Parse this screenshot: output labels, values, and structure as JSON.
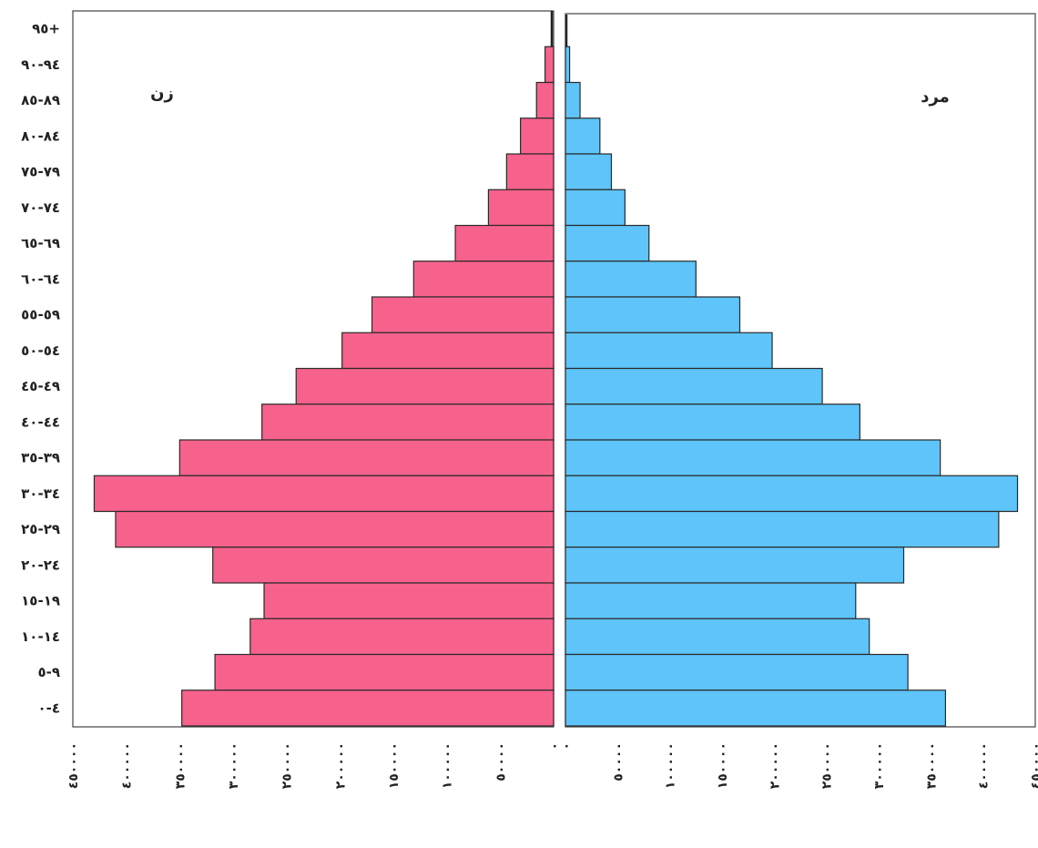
{
  "chart_data": {
    "type": "bar",
    "orientation": "horizontal",
    "categories": [
      "٩٥+",
      "٩٤-٩٠",
      "٨٩-٨٥",
      "٨٤-٨٠",
      "٧٩-٧٥",
      "٧٤-٧٠",
      "٦٩-٦٥",
      "٦٤-٦٠",
      "٥٩-٥٥",
      "٥٤-٥٠",
      "٤٩-٤٥",
      "٤٤-٤٠",
      "٣٩-٣٥",
      "٣٤-٣٠",
      "٢٩-٢٥",
      "٢٤-٢٠",
      "١٩-١٥",
      "١٤-١٠",
      "٩-٥",
      "٤-٠"
    ],
    "series": [
      {
        "name": "زن",
        "color": "#f7628c",
        "side": "left",
        "values": [
          0,
          8000,
          16000,
          31000,
          44000,
          61000,
          92000,
          131000,
          170000,
          198000,
          241000,
          273000,
          350000,
          430000,
          410000,
          319000,
          271000,
          284000,
          317000,
          348000
        ]
      },
      {
        "name": "مرد",
        "color": "#5ec4fa",
        "side": "right",
        "values": [
          0,
          4000,
          14000,
          33000,
          44000,
          57000,
          80000,
          125000,
          167000,
          198000,
          246000,
          282000,
          359000,
          433000,
          415000,
          324000,
          278000,
          291000,
          328000,
          364000
        ]
      }
    ],
    "xlim": [
      0,
      450000
    ],
    "x_ticks_female": [
      "٤٥٠٠٠٠",
      "٤٠٠٠٠٠",
      "٣٥٠٠٠٠",
      "٣٠٠٠٠٠",
      "٢٥٠٠٠٠",
      "٢٠٠٠٠٠",
      "١٥٠٠٠٠",
      "١٠٠٠٠٠",
      "٥٠٠٠٠",
      "٠"
    ],
    "x_ticks_male": [
      "٠",
      "٥٠٠٠٠",
      "١٠٠٠٠٠",
      "١٥٠٠٠٠",
      "٢٠٠٠٠٠",
      "٢٥٠٠٠٠",
      "٣٠٠٠٠٠",
      "٣٥٠٠٠٠",
      "٤٠٠٠٠٠",
      "٤٥٠٠٠٠"
    ],
    "panel_labels": {
      "female": "زن",
      "male": "مرد"
    },
    "grid": false,
    "legend": "none"
  }
}
